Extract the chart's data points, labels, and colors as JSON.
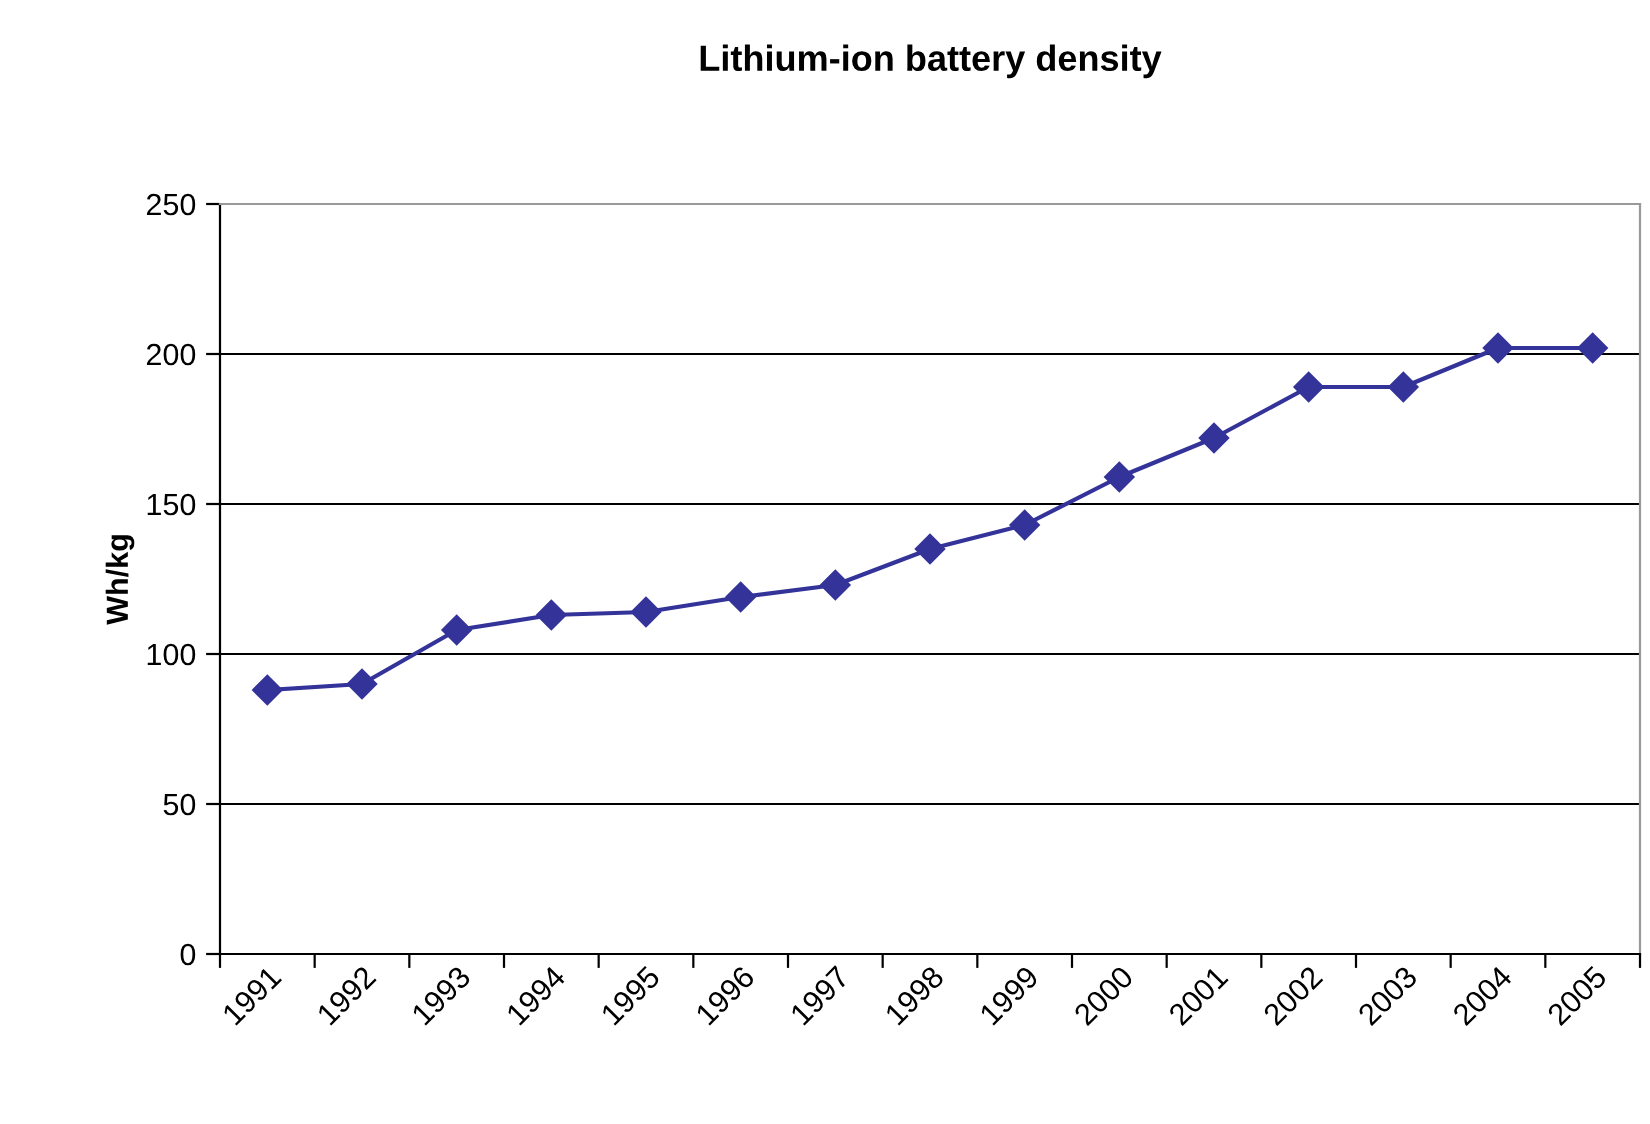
{
  "chart_data": {
    "type": "line",
    "title": "Lithium-ion battery density",
    "ylabel": "Wh/kg",
    "categories": [
      "1991",
      "1992",
      "1993",
      "1994",
      "1995",
      "1996",
      "1997",
      "1998",
      "1999",
      "2000",
      "2001",
      "2002",
      "2003",
      "2004",
      "2005"
    ],
    "series": [
      {
        "color": "#333399",
        "values": [
          88,
          90,
          108,
          113,
          114,
          119,
          123,
          135,
          143,
          159,
          172,
          189,
          189,
          202,
          202
        ]
      }
    ],
    "ylim": [
      0,
      250
    ],
    "yticks": [
      0,
      50,
      100,
      150,
      200,
      250
    ],
    "grid": "y",
    "marker": "diamond",
    "line_style": "solid",
    "legend": false
  }
}
